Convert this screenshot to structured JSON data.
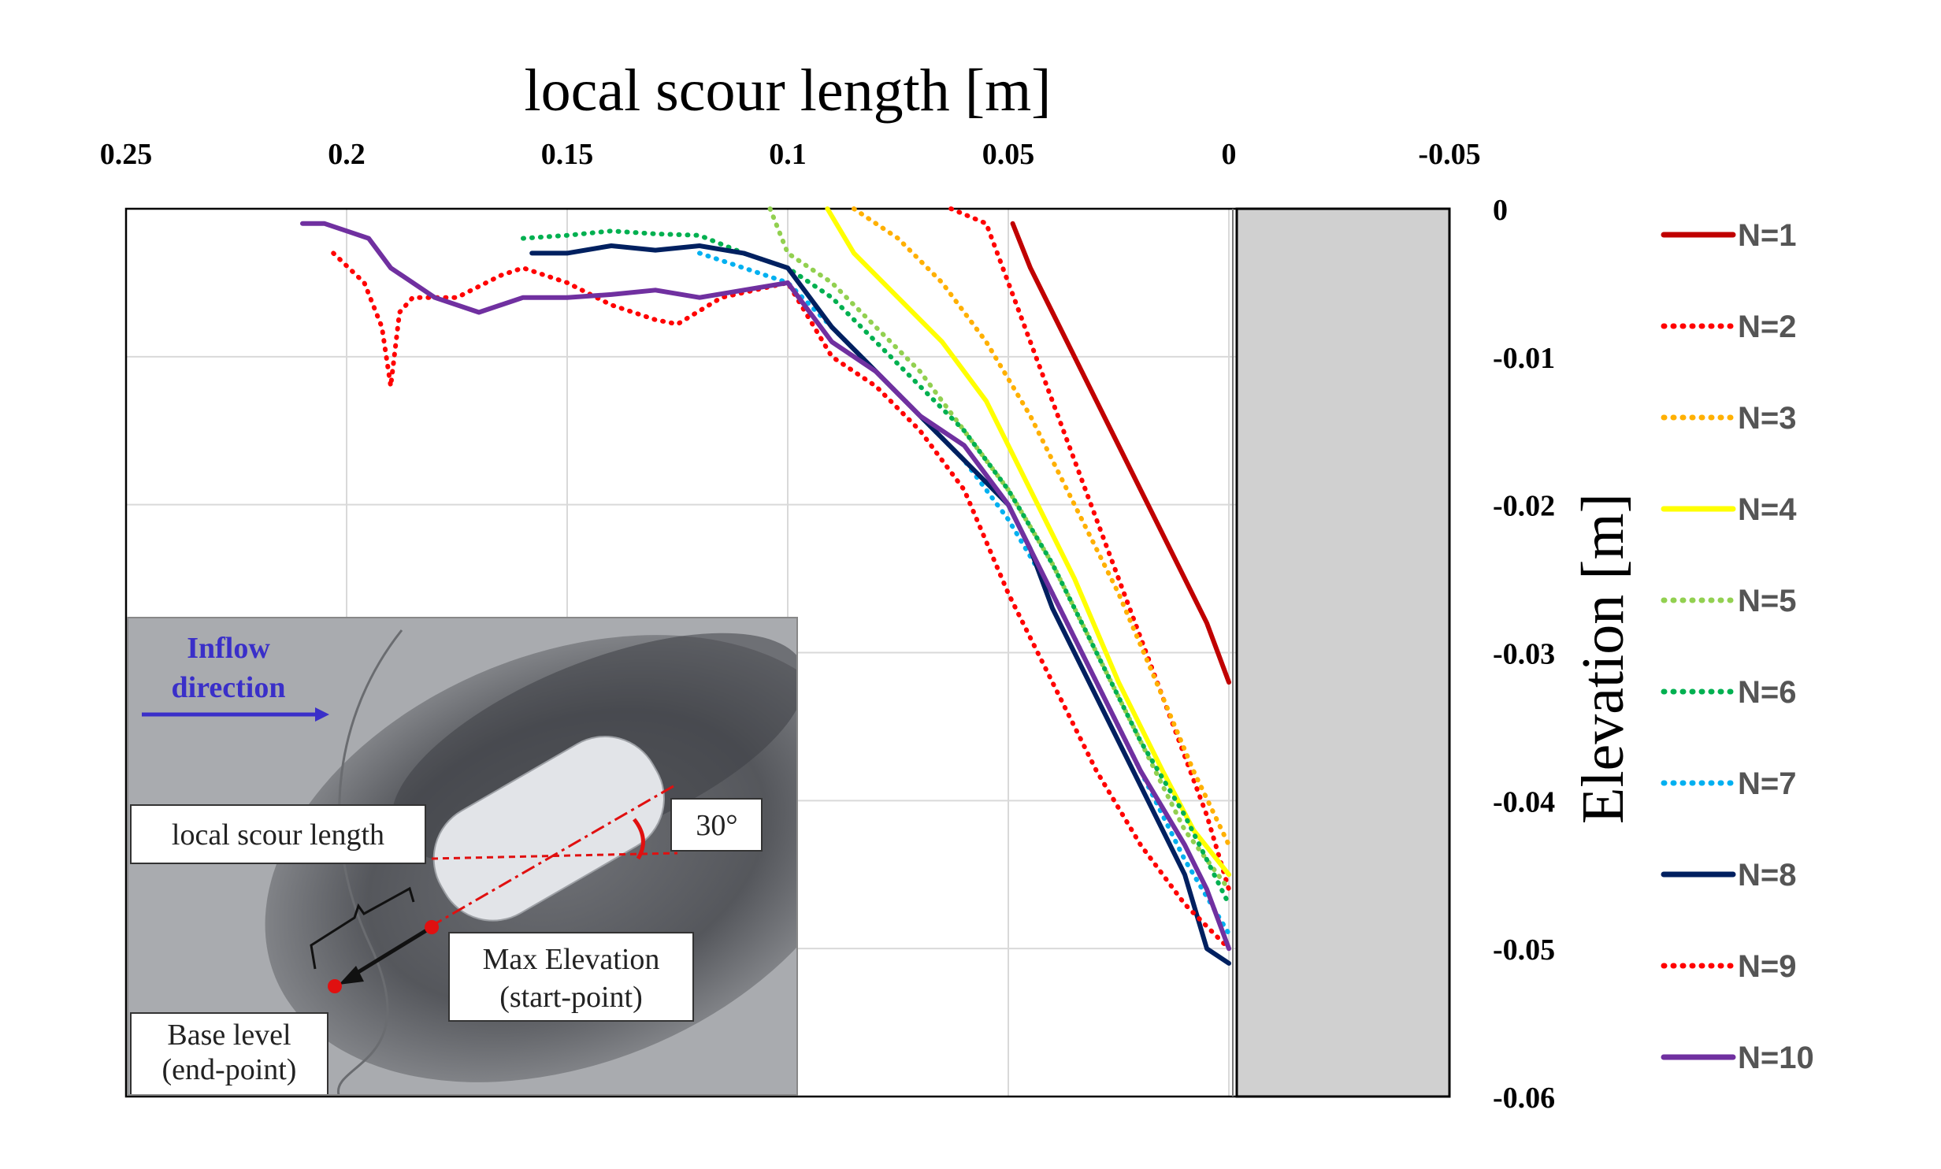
{
  "chart_data": {
    "type": "line",
    "xlabel": "local scour length [m]",
    "ylabel": "Elevation [m]",
    "xlim": [
      0.25,
      -0.05
    ],
    "ylim": [
      -0.06,
      0
    ],
    "x_ticks": [
      "0.25",
      "0.2",
      "0.15",
      "0.1",
      "0.05",
      "0",
      "-0.05"
    ],
    "y_ticks": [
      "0",
      "-0.01",
      "-0.02",
      "-0.03",
      "-0.04",
      "-0.05",
      "-0.06"
    ],
    "grid": true,
    "legend_position": "right",
    "series": [
      {
        "name": "N=1",
        "color": "#c00000",
        "style": "solid",
        "x": [
          0.049,
          0.045,
          0.04,
          0.035,
          0.03,
          0.025,
          0.02,
          0.015,
          0.01,
          0.005,
          0.0
        ],
        "y": [
          -0.001,
          -0.004,
          -0.007,
          -0.01,
          -0.013,
          -0.016,
          -0.019,
          -0.022,
          -0.025,
          -0.028,
          -0.032
        ]
      },
      {
        "name": "N=2",
        "color": "#ff0000",
        "style": "dotted",
        "x": [
          0.063,
          0.055,
          0.05,
          0.045,
          0.04,
          0.035,
          0.03,
          0.025,
          0.02,
          0.015,
          0.01,
          0.005,
          0.0
        ],
        "y": [
          0.0,
          -0.001,
          -0.005,
          -0.009,
          -0.013,
          -0.017,
          -0.021,
          -0.025,
          -0.029,
          -0.033,
          -0.037,
          -0.041,
          -0.046
        ]
      },
      {
        "name": "N=3",
        "color": "#ffb000",
        "style": "dotted",
        "x": [
          0.085,
          0.075,
          0.065,
          0.055,
          0.045,
          0.035,
          0.025,
          0.015,
          0.008,
          0.0
        ],
        "y": [
          0.0,
          -0.002,
          -0.005,
          -0.009,
          -0.014,
          -0.02,
          -0.026,
          -0.033,
          -0.038,
          -0.043
        ]
      },
      {
        "name": "N=4",
        "color": "#ffff00",
        "style": "solid",
        "x": [
          0.091,
          0.085,
          0.075,
          0.065,
          0.055,
          0.045,
          0.035,
          0.025,
          0.015,
          0.008,
          0.0
        ],
        "y": [
          0.0,
          -0.003,
          -0.006,
          -0.009,
          -0.013,
          -0.019,
          -0.025,
          -0.032,
          -0.038,
          -0.042,
          -0.045
        ]
      },
      {
        "name": "N=5",
        "color": "#92d050",
        "style": "dotted",
        "x": [
          0.104,
          0.1,
          0.09,
          0.08,
          0.07,
          0.06,
          0.05,
          0.04,
          0.03,
          0.02,
          0.01,
          0.0
        ],
        "y": [
          0.0,
          -0.003,
          -0.005,
          -0.008,
          -0.011,
          -0.015,
          -0.019,
          -0.024,
          -0.03,
          -0.036,
          -0.042,
          -0.046
        ]
      },
      {
        "name": "N=6",
        "color": "#00b050",
        "style": "dotted",
        "x": [
          0.16,
          0.15,
          0.14,
          0.13,
          0.12,
          0.11,
          0.1,
          0.09,
          0.08,
          0.07,
          0.06,
          0.05,
          0.04,
          0.03,
          0.02,
          0.01,
          0.0
        ],
        "y": [
          -0.002,
          -0.0018,
          -0.0015,
          -0.0017,
          -0.0018,
          -0.003,
          -0.004,
          -0.006,
          -0.009,
          -0.012,
          -0.015,
          -0.019,
          -0.024,
          -0.03,
          -0.036,
          -0.041,
          -0.047
        ]
      },
      {
        "name": "N=7",
        "color": "#00b0f0",
        "style": "dotted",
        "x": [
          0.12,
          0.11,
          0.1,
          0.09,
          0.08,
          0.07,
          0.06,
          0.05,
          0.04,
          0.03,
          0.02,
          0.01,
          0.0
        ],
        "y": [
          -0.003,
          -0.004,
          -0.005,
          -0.008,
          -0.011,
          -0.014,
          -0.017,
          -0.021,
          -0.026,
          -0.032,
          -0.038,
          -0.044,
          -0.049
        ]
      },
      {
        "name": "N=8",
        "color": "#002060",
        "style": "solid",
        "x": [
          0.158,
          0.15,
          0.14,
          0.13,
          0.12,
          0.11,
          0.1,
          0.095,
          0.09,
          0.08,
          0.07,
          0.06,
          0.05,
          0.045,
          0.04,
          0.03,
          0.02,
          0.01,
          0.005,
          0.0
        ],
        "y": [
          -0.003,
          -0.003,
          -0.0025,
          -0.0028,
          -0.0025,
          -0.003,
          -0.004,
          -0.006,
          -0.008,
          -0.011,
          -0.014,
          -0.017,
          -0.02,
          -0.023,
          -0.027,
          -0.033,
          -0.039,
          -0.045,
          -0.05,
          -0.051
        ]
      },
      {
        "name": "N=9",
        "color": "#ff0000",
        "style": "dotted",
        "x": [
          0.203,
          0.196,
          0.192,
          0.19,
          0.188,
          0.185,
          0.175,
          0.165,
          0.16,
          0.15,
          0.14,
          0.13,
          0.125,
          0.115,
          0.1,
          0.09,
          0.08,
          0.07,
          0.06,
          0.05,
          0.04,
          0.03,
          0.02,
          0.01,
          0.0
        ],
        "y": [
          -0.003,
          -0.005,
          -0.008,
          -0.012,
          -0.007,
          -0.006,
          -0.006,
          -0.0045,
          -0.004,
          -0.005,
          -0.0065,
          -0.0075,
          -0.0078,
          -0.006,
          -0.005,
          -0.01,
          -0.012,
          -0.015,
          -0.019,
          -0.026,
          -0.032,
          -0.038,
          -0.043,
          -0.047,
          -0.05
        ]
      },
      {
        "name": "N=10",
        "color": "#7030a0",
        "style": "solid",
        "x": [
          0.21,
          0.205,
          0.2,
          0.195,
          0.19,
          0.18,
          0.17,
          0.16,
          0.15,
          0.14,
          0.13,
          0.12,
          0.11,
          0.1,
          0.095,
          0.09,
          0.08,
          0.07,
          0.06,
          0.05,
          0.04,
          0.03,
          0.02,
          0.01,
          0.005,
          0.0
        ],
        "y": [
          -0.001,
          -0.001,
          -0.0015,
          -0.002,
          -0.004,
          -0.006,
          -0.007,
          -0.006,
          -0.006,
          -0.0058,
          -0.0055,
          -0.006,
          -0.0055,
          -0.005,
          -0.007,
          -0.009,
          -0.011,
          -0.014,
          -0.016,
          -0.02,
          -0.026,
          -0.032,
          -0.038,
          -0.043,
          -0.046,
          -0.05
        ]
      }
    ]
  },
  "inset": {
    "inflow_line1": "Inflow",
    "inflow_line2": "direction",
    "local_scour_length": "local scour length",
    "angle": "30°",
    "max_elevation_line1": "Max Elevation",
    "max_elevation_line2": "(start-point)",
    "base_level_line1": "Base level",
    "base_level_line2": "(end-point)"
  }
}
